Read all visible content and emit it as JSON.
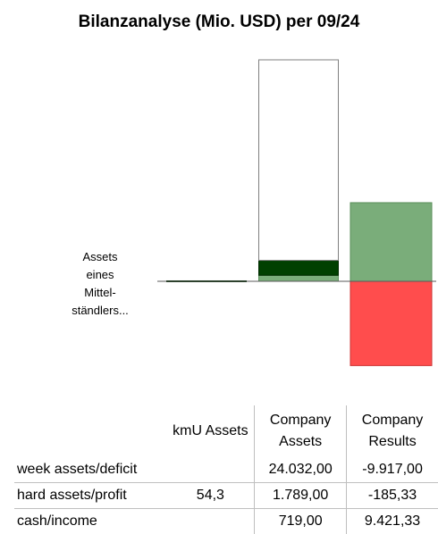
{
  "chart_data": {
    "type": "bar",
    "title": "Bilanzanalyse (Mio. USD) per 09/24",
    "annotation": [
      "Assets",
      "eines",
      "Mittel-",
      "ständlers..."
    ],
    "categories": [
      "kmU Assets",
      "Company Assets",
      "Company Results"
    ],
    "series": [
      {
        "name": "week assets/deficit",
        "values": [
          0,
          24032.0,
          -9917.0
        ]
      },
      {
        "name": "hard assets/profit",
        "values": [
          54.3,
          1789.0,
          -185.33
        ]
      },
      {
        "name": "cash/income",
        "values": [
          0,
          719.0,
          9421.33
        ]
      }
    ],
    "colors": {
      "week_assets": "#ffffff",
      "hard_assets": "#004000",
      "cash": "#7aad7a",
      "results_positive": "#7aad7a",
      "results_negative": "#ff4d4d"
    },
    "table": {
      "headers": [
        "kmU Assets",
        "Company Assets",
        "Company Results"
      ],
      "rows": [
        {
          "label": "week assets/deficit",
          "values": [
            "",
            "24.032,00",
            "-9.917,00"
          ]
        },
        {
          "label": "hard assets/profit",
          "values": [
            "54,3",
            "1.789,00",
            "-185,33"
          ]
        },
        {
          "label": "cash/income",
          "values": [
            "",
            "719,00",
            "9.421,33"
          ]
        }
      ]
    }
  }
}
